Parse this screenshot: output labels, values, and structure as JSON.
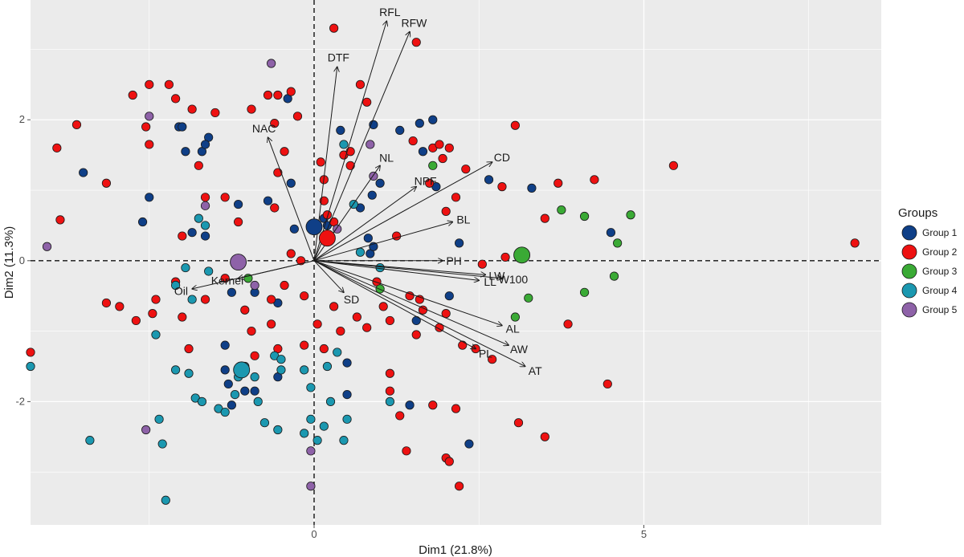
{
  "chart_data": {
    "type": "scatter",
    "title": "",
    "xlabel": "Dim1 (21.8%)",
    "ylabel": "Dim2 (11.3%)",
    "xlim": [
      -4.3,
      8.6
    ],
    "ylim": [
      -3.75,
      3.7
    ],
    "x_ticks": [
      0,
      5
    ],
    "x_tick_labels": [
      "0",
      "5"
    ],
    "y_ticks": [
      -2,
      0,
      2
    ],
    "y_tick_labels": [
      "-2",
      "0",
      "2"
    ],
    "grid": true,
    "background": "#ebebeb",
    "legend": {
      "title": "Groups",
      "placement": "right",
      "entries": [
        {
          "label": "Group 1",
          "color": "#0f3f87"
        },
        {
          "label": "Group 2",
          "color": "#ee1111"
        },
        {
          "label": "Group 3",
          "color": "#3aaa35"
        },
        {
          "label": "Group 4",
          "color": "#1b98b0"
        },
        {
          "label": "Group 5",
          "color": "#8e62a8"
        }
      ]
    },
    "variables": [
      {
        "name": "RFL",
        "x": 1.1,
        "y": 3.4
      },
      {
        "name": "RFW",
        "x": 1.45,
        "y": 3.25
      },
      {
        "name": "DTF",
        "x": 0.35,
        "y": 2.75
      },
      {
        "name": "NAC",
        "x": -0.7,
        "y": 1.75
      },
      {
        "name": "NL",
        "x": 1.0,
        "y": 1.35
      },
      {
        "name": "NPF",
        "x": 1.55,
        "y": 1.05
      },
      {
        "name": "CD",
        "x": 2.7,
        "y": 1.4
      },
      {
        "name": "BL",
        "x": 2.1,
        "y": 0.55
      },
      {
        "name": "PH",
        "x": 1.95,
        "y": 0.0
      },
      {
        "name": "LW",
        "x": 2.6,
        "y": -0.2
      },
      {
        "name": "W100",
        "x": 2.85,
        "y": -0.25
      },
      {
        "name": "LL",
        "x": 2.5,
        "y": -0.28
      },
      {
        "name": "SD",
        "x": 0.45,
        "y": -0.45
      },
      {
        "name": "AL",
        "x": 2.85,
        "y": -0.92
      },
      {
        "name": "AW",
        "x": 2.95,
        "y": -1.2
      },
      {
        "name": "PL",
        "x": 2.45,
        "y": -1.25
      },
      {
        "name": "AT",
        "x": 3.2,
        "y": -1.5
      },
      {
        "name": "Kernel",
        "x": -1.15,
        "y": -0.25
      },
      {
        "name": "Oil",
        "x": -1.85,
        "y": -0.4
      }
    ],
    "centroids": [
      {
        "group": "Group 1",
        "x": 0.0,
        "y": 0.48
      },
      {
        "group": "Group 2",
        "x": 0.2,
        "y": 0.32
      },
      {
        "group": "Group 3",
        "x": 3.15,
        "y": 0.08
      },
      {
        "group": "Group 4",
        "x": -1.1,
        "y": -1.55
      },
      {
        "group": "Group 5",
        "x": -1.15,
        "y": -0.02
      }
    ],
    "series": [
      {
        "name": "Group 1",
        "points": [
          [
            -3.5,
            1.25
          ],
          [
            -2.5,
            0.9
          ],
          [
            -2.6,
            0.55
          ],
          [
            -1.95,
            1.55
          ],
          [
            -1.7,
            1.55
          ],
          [
            -1.6,
            1.75
          ],
          [
            -2.05,
            1.9
          ],
          [
            -1.65,
            1.65
          ],
          [
            -1.65,
            0.35
          ],
          [
            -1.85,
            0.4
          ],
          [
            -1.15,
            0.8
          ],
          [
            -0.7,
            0.85
          ],
          [
            -0.4,
            2.3
          ],
          [
            -0.35,
            1.1
          ],
          [
            0.15,
            0.6
          ],
          [
            0.7,
            0.75
          ],
          [
            0.9,
            1.93
          ],
          [
            1.0,
            1.1
          ],
          [
            0.88,
            0.93
          ],
          [
            0.82,
            0.32
          ],
          [
            0.85,
            0.1
          ],
          [
            0.9,
            0.2
          ],
          [
            1.3,
            1.85
          ],
          [
            1.6,
            1.95
          ],
          [
            1.8,
            2.0
          ],
          [
            1.65,
            1.55
          ],
          [
            1.85,
            1.05
          ],
          [
            2.2,
            0.25
          ],
          [
            2.65,
            1.15
          ],
          [
            3.3,
            1.03
          ],
          [
            4.5,
            0.4
          ],
          [
            -2.0,
            1.9
          ],
          [
            -0.3,
            0.45
          ],
          [
            0.2,
            0.5
          ],
          [
            0.4,
            1.85
          ],
          [
            -1.25,
            -0.45
          ],
          [
            -0.9,
            -0.45
          ],
          [
            -0.55,
            -0.6
          ],
          [
            -1.35,
            -1.55
          ],
          [
            -1.3,
            -1.75
          ],
          [
            -1.25,
            -2.05
          ],
          [
            -1.05,
            -1.85
          ],
          [
            -0.9,
            -1.85
          ],
          [
            -0.55,
            -1.65
          ],
          [
            -1.35,
            -1.2
          ],
          [
            0.5,
            -1.45
          ],
          [
            0.5,
            -1.9
          ],
          [
            2.05,
            -0.5
          ],
          [
            1.55,
            -0.85
          ],
          [
            1.45,
            -2.05
          ],
          [
            2.35,
            -2.6
          ]
        ]
      },
      {
        "name": "Group 2",
        "points": [
          [
            -4.3,
            -1.3
          ],
          [
            -3.9,
            1.6
          ],
          [
            -3.85,
            0.58
          ],
          [
            -3.6,
            1.93
          ],
          [
            -3.15,
            1.1
          ],
          [
            -2.75,
            2.35
          ],
          [
            -2.5,
            2.5
          ],
          [
            -2.55,
            1.9
          ],
          [
            -2.5,
            1.65
          ],
          [
            -2.2,
            2.5
          ],
          [
            -2.1,
            2.3
          ],
          [
            -2.0,
            0.35
          ],
          [
            -1.85,
            2.15
          ],
          [
            -1.5,
            2.1
          ],
          [
            -1.75,
            1.35
          ],
          [
            -1.65,
            0.9
          ],
          [
            -1.35,
            0.9
          ],
          [
            -1.15,
            0.55
          ],
          [
            -0.95,
            2.15
          ],
          [
            -0.7,
            2.35
          ],
          [
            -0.55,
            2.35
          ],
          [
            -0.35,
            2.4
          ],
          [
            -0.25,
            2.05
          ],
          [
            -0.6,
            1.95
          ],
          [
            -0.45,
            1.55
          ],
          [
            -0.55,
            1.25
          ],
          [
            -0.6,
            0.75
          ],
          [
            -0.2,
            0.0
          ],
          [
            -0.35,
            0.1
          ],
          [
            0.3,
            3.3
          ],
          [
            0.1,
            1.4
          ],
          [
            0.15,
            1.15
          ],
          [
            0.15,
            0.85
          ],
          [
            0.2,
            0.65
          ],
          [
            0.3,
            0.55
          ],
          [
            0.45,
            1.5
          ],
          [
            0.55,
            1.55
          ],
          [
            0.55,
            1.35
          ],
          [
            0.7,
            2.5
          ],
          [
            0.8,
            2.25
          ],
          [
            1.55,
            3.1
          ],
          [
            1.25,
            0.35
          ],
          [
            1.75,
            1.1
          ],
          [
            1.8,
            1.6
          ],
          [
            1.5,
            1.7
          ],
          [
            1.9,
            1.65
          ],
          [
            1.95,
            1.45
          ],
          [
            2.15,
            0.9
          ],
          [
            2.05,
            1.6
          ],
          [
            2.0,
            0.7
          ],
          [
            2.3,
            1.3
          ],
          [
            2.55,
            -0.05
          ],
          [
            2.9,
            0.05
          ],
          [
            3.05,
            1.92
          ],
          [
            2.85,
            1.05
          ],
          [
            3.5,
            0.6
          ],
          [
            3.7,
            1.1
          ],
          [
            4.25,
            1.15
          ],
          [
            5.45,
            1.35
          ],
          [
            8.2,
            0.25
          ],
          [
            -3.15,
            -0.6
          ],
          [
            -2.95,
            -0.65
          ],
          [
            -2.7,
            -0.85
          ],
          [
            -2.45,
            -0.75
          ],
          [
            -2.4,
            -0.55
          ],
          [
            -2.1,
            -0.3
          ],
          [
            -2.0,
            -0.8
          ],
          [
            -1.9,
            -1.25
          ],
          [
            -1.65,
            -0.55
          ],
          [
            -1.35,
            -0.25
          ],
          [
            -1.05,
            -0.7
          ],
          [
            -0.95,
            -1.0
          ],
          [
            -0.65,
            -0.55
          ],
          [
            -0.55,
            -1.25
          ],
          [
            -0.65,
            -0.9
          ],
          [
            -0.45,
            -0.35
          ],
          [
            -0.15,
            -0.5
          ],
          [
            0.05,
            -0.9
          ],
          [
            0.3,
            -0.65
          ],
          [
            0.4,
            -1.0
          ],
          [
            0.15,
            -1.25
          ],
          [
            0.65,
            -0.8
          ],
          [
            0.8,
            -0.95
          ],
          [
            1.05,
            -0.65
          ],
          [
            1.15,
            -0.85
          ],
          [
            1.45,
            -0.5
          ],
          [
            1.6,
            -0.55
          ],
          [
            1.65,
            -0.7
          ],
          [
            1.55,
            -1.05
          ],
          [
            1.9,
            -0.95
          ],
          [
            2.25,
            -1.2
          ],
          [
            2.45,
            -1.25
          ],
          [
            2.0,
            -0.75
          ],
          [
            1.15,
            -1.6
          ],
          [
            1.15,
            -1.85
          ],
          [
            1.3,
            -2.2
          ],
          [
            1.4,
            -2.7
          ],
          [
            1.8,
            -2.05
          ],
          [
            2.0,
            -2.8
          ],
          [
            2.05,
            -2.85
          ],
          [
            2.2,
            -3.2
          ],
          [
            2.15,
            -2.1
          ],
          [
            2.7,
            -1.4
          ],
          [
            3.1,
            -2.3
          ],
          [
            3.5,
            -2.5
          ],
          [
            3.85,
            -0.9
          ],
          [
            4.45,
            -1.75
          ],
          [
            -0.9,
            -1.35
          ],
          [
            -0.15,
            -1.2
          ],
          [
            0.95,
            -0.3
          ]
        ]
      },
      {
        "name": "Group 3",
        "points": [
          [
            1.8,
            1.35
          ],
          [
            3.75,
            0.72
          ],
          [
            4.1,
            0.63
          ],
          [
            4.8,
            0.65
          ],
          [
            4.6,
            0.25
          ],
          [
            4.55,
            -0.22
          ],
          [
            4.1,
            -0.45
          ],
          [
            3.25,
            -0.53
          ],
          [
            3.05,
            -0.8
          ],
          [
            1.0,
            -0.4
          ],
          [
            -1.0,
            -0.25
          ]
        ]
      },
      {
        "name": "Group 4",
        "points": [
          [
            -4.3,
            -1.5
          ],
          [
            -3.4,
            -2.55
          ],
          [
            -2.4,
            -1.05
          ],
          [
            -2.35,
            -2.25
          ],
          [
            -2.3,
            -2.6
          ],
          [
            -2.25,
            -3.4
          ],
          [
            -2.1,
            -1.55
          ],
          [
            -1.9,
            -1.6
          ],
          [
            -1.8,
            -1.95
          ],
          [
            -1.7,
            -2.0
          ],
          [
            -1.45,
            -2.1
          ],
          [
            -1.35,
            -2.15
          ],
          [
            -1.2,
            -1.9
          ],
          [
            -1.15,
            -1.65
          ],
          [
            -1.05,
            -1.5
          ],
          [
            -0.9,
            -1.65
          ],
          [
            -0.85,
            -2.0
          ],
          [
            -0.75,
            -2.3
          ],
          [
            -0.6,
            -1.35
          ],
          [
            -0.55,
            -2.4
          ],
          [
            -0.5,
            -1.55
          ],
          [
            -0.15,
            -1.55
          ],
          [
            -0.05,
            -1.8
          ],
          [
            -0.05,
            -2.25
          ],
          [
            0.15,
            -2.35
          ],
          [
            0.2,
            -1.5
          ],
          [
            0.25,
            -2.0
          ],
          [
            0.5,
            -2.25
          ],
          [
            0.45,
            -2.55
          ],
          [
            0.35,
            -1.3
          ],
          [
            1.15,
            -2.0
          ],
          [
            -0.15,
            -2.45
          ],
          [
            -0.5,
            -1.4
          ],
          [
            0.05,
            -2.55
          ],
          [
            -1.85,
            -0.55
          ],
          [
            -1.95,
            -0.1
          ],
          [
            -2.1,
            -0.35
          ],
          [
            -1.75,
            0.6
          ],
          [
            -1.65,
            0.5
          ],
          [
            0.45,
            1.65
          ],
          [
            0.7,
            0.12
          ],
          [
            1.0,
            -0.1
          ],
          [
            0.6,
            0.8
          ],
          [
            -1.6,
            -0.15
          ]
        ]
      },
      {
        "name": "Group 5",
        "points": [
          [
            -4.05,
            0.2
          ],
          [
            -2.5,
            2.05
          ],
          [
            -2.55,
            -2.4
          ],
          [
            -1.65,
            0.78
          ],
          [
            -0.65,
            2.8
          ],
          [
            0.85,
            1.65
          ],
          [
            0.9,
            1.2
          ],
          [
            -0.9,
            -0.35
          ],
          [
            -0.05,
            -2.7
          ],
          [
            -0.05,
            -3.2
          ],
          [
            0.35,
            0.45
          ]
        ]
      }
    ]
  }
}
